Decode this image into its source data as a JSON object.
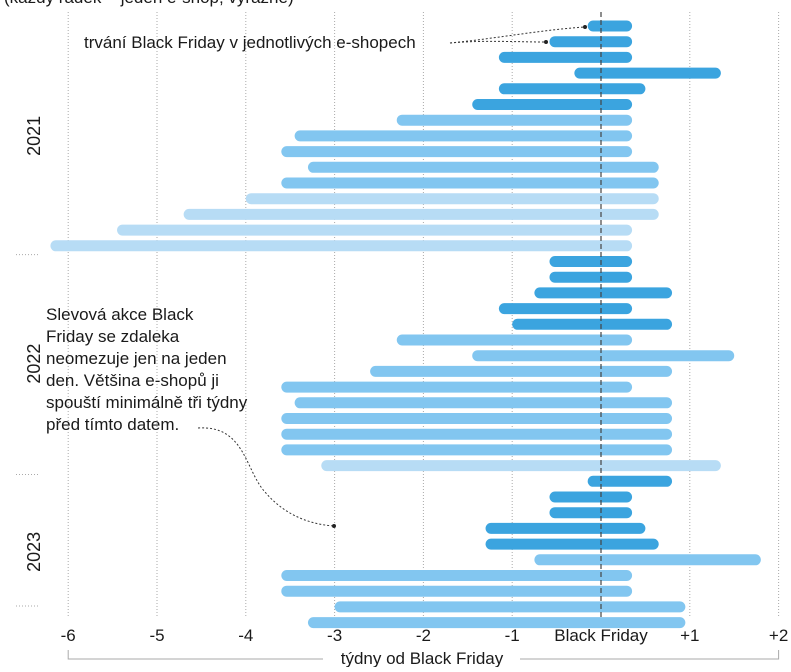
{
  "chart_data": {
    "type": "bar",
    "subtype": "horizontal-range",
    "header_fragment": "(každý řádek = jeden e-shop; výrazně)",
    "xlabel": "týdny od Black Friday",
    "xlim": [
      -6.3,
      2.05
    ],
    "x_ticks": [
      {
        "value": -6,
        "label": "-6"
      },
      {
        "value": -5,
        "label": "-5"
      },
      {
        "value": -4,
        "label": "-4"
      },
      {
        "value": -3,
        "label": "-3"
      },
      {
        "value": -2,
        "label": "-2"
      },
      {
        "value": -1,
        "label": "-1"
      },
      {
        "value": 0,
        "label": "Black Friday"
      },
      {
        "value": 1,
        "label": "+1"
      },
      {
        "value": 2,
        "label": "+2"
      }
    ],
    "reference_line": {
      "value": 0,
      "style": "dashed"
    },
    "colors": {
      "light": "#b7dcf5",
      "medium": "#82c6f0",
      "dark": "#3ba4df",
      "grid": "#aaaaaa",
      "axis": "#555555",
      "ref_line": "#444444"
    },
    "groups": [
      {
        "label": "2021",
        "ranges": [
          {
            "start": -0.15,
            "end": 0.35,
            "shade": "dark"
          },
          {
            "start": -0.58,
            "end": 0.35,
            "shade": "dark"
          },
          {
            "start": -1.15,
            "end": 0.35,
            "shade": "dark"
          },
          {
            "start": -0.3,
            "end": 1.35,
            "shade": "dark"
          },
          {
            "start": -1.15,
            "end": 0.5,
            "shade": "dark"
          },
          {
            "start": -1.45,
            "end": 0.35,
            "shade": "dark"
          },
          {
            "start": -2.3,
            "end": 0.35,
            "shade": "medium"
          },
          {
            "start": -3.45,
            "end": 0.35,
            "shade": "medium"
          },
          {
            "start": -3.6,
            "end": 0.35,
            "shade": "medium"
          },
          {
            "start": -3.3,
            "end": 0.65,
            "shade": "medium"
          },
          {
            "start": -3.6,
            "end": 0.65,
            "shade": "medium"
          },
          {
            "start": -4.0,
            "end": 0.65,
            "shade": "light"
          },
          {
            "start": -4.7,
            "end": 0.65,
            "shade": "light"
          },
          {
            "start": -5.45,
            "end": 0.35,
            "shade": "light"
          },
          {
            "start": -6.2,
            "end": 0.35,
            "shade": "light"
          }
        ]
      },
      {
        "label": "2022",
        "ranges": [
          {
            "start": -0.58,
            "end": 0.35,
            "shade": "dark"
          },
          {
            "start": -0.58,
            "end": 0.35,
            "shade": "dark"
          },
          {
            "start": -0.75,
            "end": 0.8,
            "shade": "dark"
          },
          {
            "start": -1.15,
            "end": 0.35,
            "shade": "dark"
          },
          {
            "start": -1.0,
            "end": 0.8,
            "shade": "dark"
          },
          {
            "start": -2.3,
            "end": 0.35,
            "shade": "medium"
          },
          {
            "start": -1.45,
            "end": 1.5,
            "shade": "medium"
          },
          {
            "start": -2.6,
            "end": 0.8,
            "shade": "medium"
          },
          {
            "start": -3.6,
            "end": 0.35,
            "shade": "medium"
          },
          {
            "start": -3.45,
            "end": 0.8,
            "shade": "medium"
          },
          {
            "start": -3.6,
            "end": 0.8,
            "shade": "medium"
          },
          {
            "start": -3.6,
            "end": 0.8,
            "shade": "medium"
          },
          {
            "start": -3.6,
            "end": 0.8,
            "shade": "medium"
          },
          {
            "start": -3.15,
            "end": 1.35,
            "shade": "light"
          }
        ]
      },
      {
        "label": "2023",
        "ranges": [
          {
            "start": -0.15,
            "end": 0.8,
            "shade": "dark"
          },
          {
            "start": -0.58,
            "end": 0.35,
            "shade": "dark"
          },
          {
            "start": -0.58,
            "end": 0.35,
            "shade": "dark"
          },
          {
            "start": -1.3,
            "end": 0.5,
            "shade": "dark"
          },
          {
            "start": -1.3,
            "end": 0.65,
            "shade": "dark"
          },
          {
            "start": -0.75,
            "end": 1.8,
            "shade": "medium"
          },
          {
            "start": -3.6,
            "end": 0.35,
            "shade": "medium"
          },
          {
            "start": -3.6,
            "end": 0.35,
            "shade": "medium"
          },
          {
            "start": -3.0,
            "end": 0.95,
            "shade": "medium"
          },
          {
            "start": -3.3,
            "end": 0.95,
            "shade": "medium"
          }
        ]
      }
    ],
    "annotations": [
      {
        "id": "duration",
        "lines": [
          "trvání Black Friday v jednotlivých e-shopech"
        ]
      },
      {
        "id": "note",
        "lines": [
          "Slevová akce Black",
          "Friday se zdaleka",
          "neomezuje jen na jeden",
          "den. Většina e-shopů ji",
          "spouští minimálně tři týdny",
          "před tímto datem."
        ]
      }
    ]
  }
}
